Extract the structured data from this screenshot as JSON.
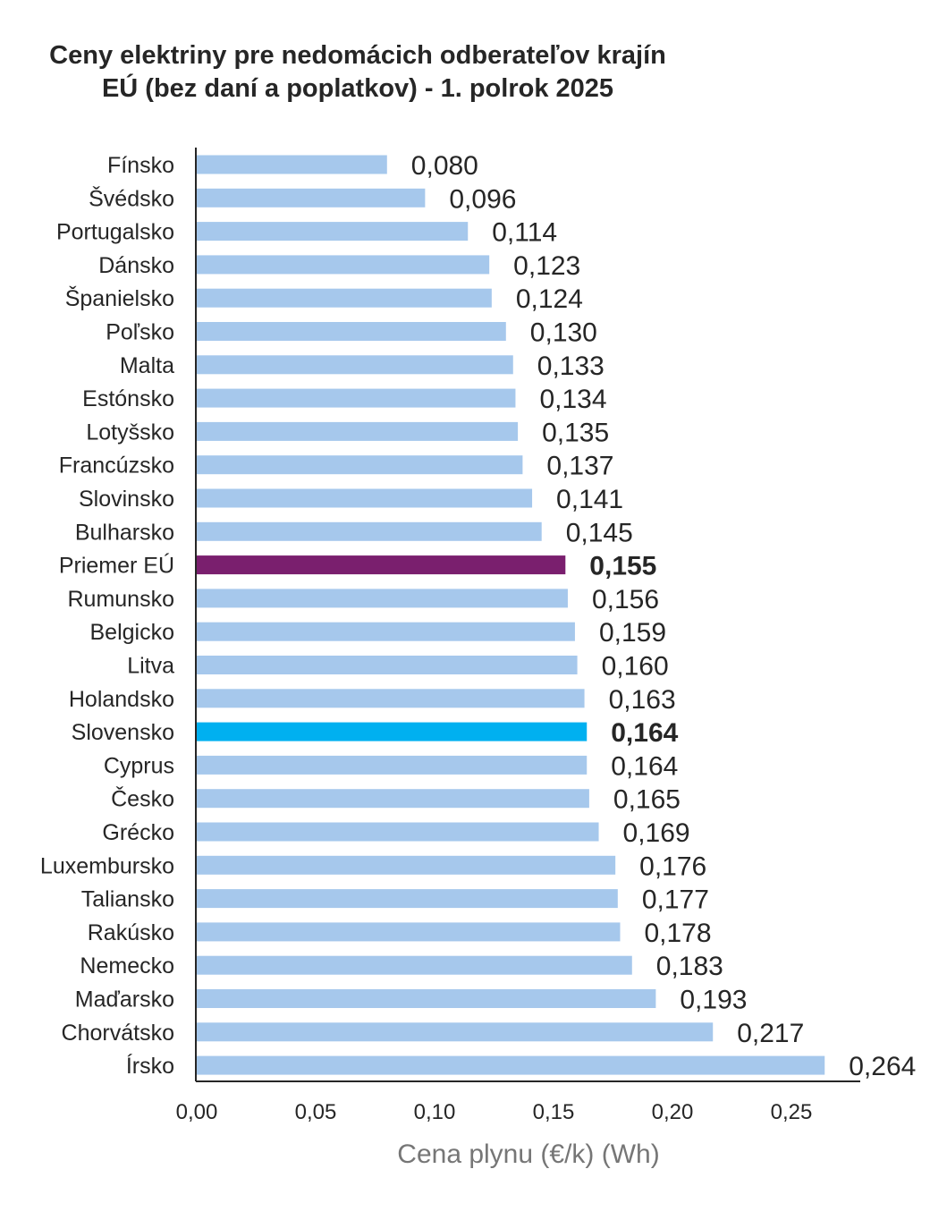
{
  "chart_data": {
    "type": "bar",
    "orientation": "horizontal",
    "title_lines": [
      "Ceny elektriny pre nedomácich odberateľov krajín",
      "EÚ  (bez daní a poplatkov) - 1. polrok 2025"
    ],
    "xlabel": "Cena plynu (€/k) (Wh)",
    "xlim": [
      0,
      0.28
    ],
    "xticks": [
      0.0,
      0.05,
      0.1,
      0.15,
      0.2,
      0.25
    ],
    "xtick_labels": [
      "0,00",
      "0,05",
      "0,10",
      "0,15",
      "0,20",
      "0,25"
    ],
    "categories": [
      "Fínsko",
      "Švédsko",
      "Portugalsko",
      "Dánsko",
      "Španielsko",
      "Poľsko",
      "Malta",
      "Estónsko",
      "Lotyšsko",
      "Francúzsko",
      "Slovinsko",
      "Bulharsko",
      "Priemer EÚ",
      "Rumunsko",
      "Belgicko",
      "Litva",
      "Holandsko",
      "Slovensko",
      "Cyprus",
      "Česko",
      "Grécko",
      "Luxembursko",
      "Taliansko",
      "Rakúsko",
      "Nemecko",
      "Maďarsko",
      "Chorvátsko",
      "Írsko"
    ],
    "values": [
      0.08,
      0.096,
      0.114,
      0.123,
      0.124,
      0.13,
      0.133,
      0.134,
      0.135,
      0.137,
      0.141,
      0.145,
      0.155,
      0.156,
      0.159,
      0.16,
      0.163,
      0.164,
      0.164,
      0.165,
      0.169,
      0.176,
      0.177,
      0.178,
      0.183,
      0.193,
      0.217,
      0.264
    ],
    "value_labels": [
      "0,080",
      "0,096",
      "0,114",
      "0,123",
      "0,124",
      "0,130",
      "0,133",
      "0,134",
      "0,135",
      "0,137",
      "0,141",
      "0,145",
      "0,155",
      "0,156",
      "0,159",
      "0,160",
      "0,163",
      "0,164",
      "0,164",
      "0,165",
      "0,169",
      "0,176",
      "0,177",
      "0,178",
      "0,183",
      "0,193",
      "0,217",
      "0,264"
    ],
    "colors": {
      "default": "#a6c8ec",
      "eu_average": "#7a1f6e",
      "slovakia": "#00b0f0",
      "axis": "#262626"
    },
    "highlights": {
      "Priemer EÚ": "eu_average",
      "Slovensko": "slovakia"
    },
    "bold_labels": [
      "Priemer EÚ",
      "Slovensko"
    ]
  }
}
